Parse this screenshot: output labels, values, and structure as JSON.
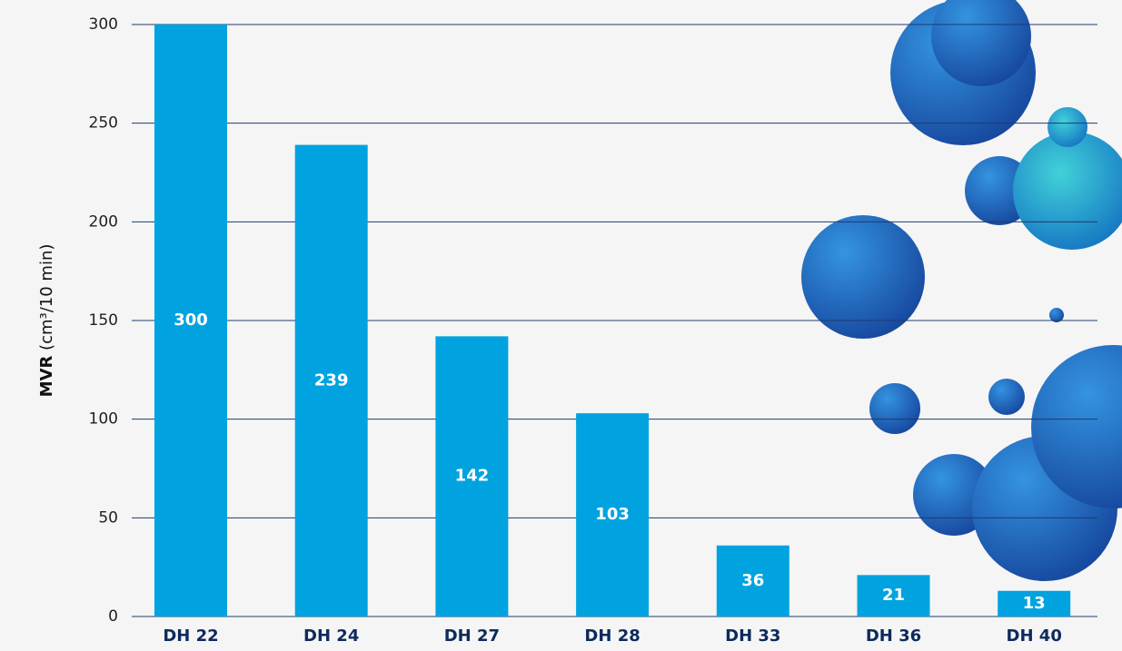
{
  "chart_data": {
    "type": "bar",
    "ylabel": {
      "name": "MVR",
      "unit": "(cm³/10 min)"
    },
    "categories": [
      "DH 22",
      "DH 24",
      "DH 27",
      "DH 28",
      "DH 33",
      "DH 36",
      "DH 40"
    ],
    "values": [
      300,
      239,
      142,
      103,
      36,
      21,
      13
    ],
    "color": "#00a3e0",
    "ylim": [
      0,
      300
    ],
    "yticks": [
      0,
      50,
      100,
      150,
      200,
      250,
      300
    ],
    "grid": true
  }
}
